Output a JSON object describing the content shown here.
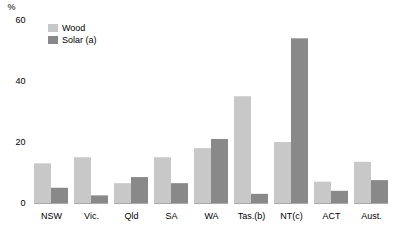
{
  "chart_data": {
    "type": "bar",
    "categories": [
      "NSW",
      "Vic.",
      "Qld",
      "SA",
      "WA",
      "Tas.(b)",
      "NT(c)",
      "ACT",
      "Aust."
    ],
    "series": [
      {
        "name": "Wood",
        "color": "#c8c8c8",
        "values": [
          13,
          15,
          6.5,
          15,
          18,
          35,
          20,
          7,
          13.5
        ]
      },
      {
        "name": "Solar (a)",
        "color": "#898989",
        "values": [
          5,
          2.5,
          8.5,
          6.5,
          21,
          3,
          54,
          4,
          7.5
        ]
      }
    ],
    "ylabel": "%",
    "ylim": [
      0,
      60
    ],
    "yticks": [
      0,
      20,
      40,
      60
    ],
    "grid": false,
    "legend": "upper left"
  }
}
